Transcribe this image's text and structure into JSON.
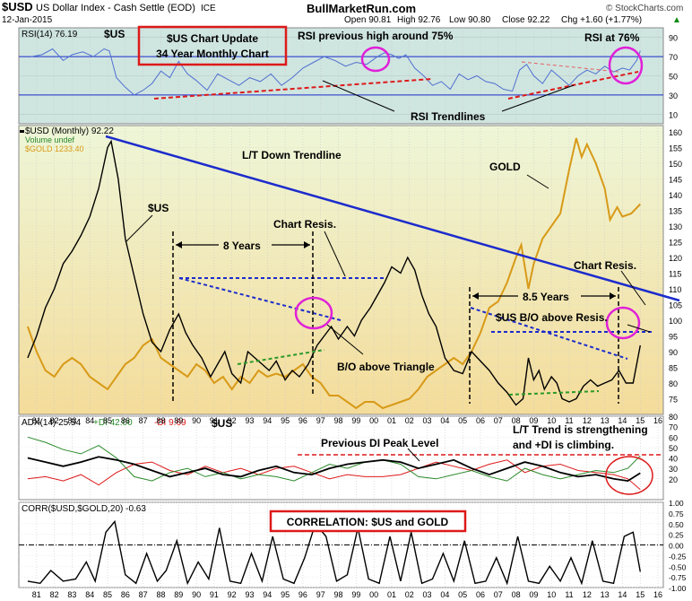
{
  "header": {
    "symbol": "$USD",
    "description": "US Dollar Index - Cash Settle (EOD)",
    "exchange": "ICE",
    "date": "12-Jan-2015",
    "site": "BullMarketRun.com",
    "watermark": "© StockCharts.com",
    "quote": {
      "open": "Open 90.81",
      "high": "High 92.76",
      "low": "Low 90.80",
      "close": "Close 92.22",
      "chg": "Chg +1.60 (+1.77%)",
      "arrow": "▲"
    }
  },
  "colors": {
    "rsi_bg": "#cfe5e0",
    "main_bg_top": "#eef6d8",
    "main_bg_bottom": "#f3dfa0",
    "usd": "#000000",
    "gold": "#d89a18",
    "rsi_line": "#5070d0",
    "trend_blue": "#1c2ccc",
    "trend_red": "#dd1a1a",
    "magenta": "#e020d8",
    "adx": "#000000",
    "plus_di": "#2a8a2a",
    "minus_di": "#dd1a1a",
    "annotation_box": "#dd1a1a"
  },
  "chart_data": [
    {
      "panel": "rsi",
      "type": "line",
      "legend": "RSI(14) 76.19",
      "ticker_label": "$US",
      "ylim": [
        0,
        100
      ],
      "y_ticks": [
        10,
        30,
        50,
        70,
        90
      ],
      "reference_lines": [
        70,
        30
      ],
      "x_years": [
        1980,
        2016.3
      ],
      "series": [
        {
          "name": "RSI(14)",
          "x": [
            1980.7,
            1981.3,
            1981.9,
            1982.5,
            1983.0,
            1983.6,
            1984.2,
            1984.8,
            1985.1,
            1985.5,
            1986.0,
            1986.5,
            1987.0,
            1987.5,
            1988.0,
            1988.5,
            1989.0,
            1989.5,
            1990.0,
            1990.6,
            1991.2,
            1991.8,
            1992.4,
            1993.0,
            1993.6,
            1994.2,
            1994.8,
            1995.4,
            1996.0,
            1996.6,
            1997.2,
            1997.8,
            1998.4,
            1999.0,
            1999.6,
            2000.2,
            2000.6,
            2001.0,
            2001.4,
            2001.8,
            2002.3,
            2002.8,
            2003.3,
            2003.8,
            2004.3,
            2004.8,
            2005.3,
            2005.8,
            2006.3,
            2006.8,
            2007.3,
            2007.8,
            2008.2,
            2008.6,
            2009.0,
            2009.5,
            2010.0,
            2010.5,
            2011.0,
            2011.5,
            2012.0,
            2012.5,
            2013.0,
            2013.5,
            2014.0,
            2014.4,
            2014.8,
            2015.0
          ],
          "values": [
            70,
            72,
            78,
            66,
            72,
            75,
            70,
            78,
            76,
            48,
            38,
            30,
            35,
            42,
            55,
            48,
            65,
            52,
            45,
            35,
            52,
            46,
            40,
            48,
            44,
            52,
            40,
            48,
            58,
            64,
            70,
            66,
            60,
            64,
            62,
            70,
            74,
            72,
            68,
            72,
            58,
            50,
            40,
            44,
            36,
            52,
            46,
            50,
            44,
            42,
            36,
            34,
            56,
            62,
            50,
            42,
            56,
            48,
            40,
            50,
            56,
            52,
            60,
            54,
            58,
            56,
            66,
            76
          ]
        }
      ]
    },
    {
      "panel": "price",
      "type": "line",
      "legend": [
        "$USD (Monthly) 92.22",
        "Volume undef",
        "$GOLD 1233.40"
      ],
      "ylim": [
        70,
        162
      ],
      "y_ticks": [
        75,
        80,
        85,
        90,
        95,
        100,
        105,
        110,
        115,
        120,
        125,
        130,
        135,
        140,
        145,
        150,
        155,
        160
      ],
      "x_ticks": [
        "81",
        "82",
        "83",
        "84",
        "85",
        "86",
        "87",
        "88",
        "89",
        "90",
        "91",
        "92",
        "93",
        "94",
        "95",
        "96",
        "97",
        "98",
        "99",
        "00",
        "01",
        "02",
        "03",
        "04",
        "05",
        "06",
        "07",
        "08",
        "09",
        "10",
        "11",
        "12",
        "13",
        "14",
        "15",
        "16"
      ],
      "series": [
        {
          "name": "$USD",
          "x": [
            1980.5,
            1981.0,
            1981.5,
            1982.0,
            1982.5,
            1983.0,
            1983.5,
            1984.0,
            1984.5,
            1985.0,
            1985.2,
            1985.6,
            1986.0,
            1986.5,
            1987.0,
            1987.5,
            1988.0,
            1988.5,
            1989.0,
            1989.4,
            1989.8,
            1990.3,
            1990.8,
            1991.2,
            1991.6,
            1992.0,
            1992.5,
            1992.9,
            1993.3,
            1993.7,
            1994.1,
            1994.5,
            1995.0,
            1995.4,
            1995.8,
            1996.3,
            1996.8,
            1997.2,
            1997.6,
            1998.0,
            1998.5,
            1998.9,
            1999.3,
            1999.8,
            2000.2,
            2000.6,
            2001.0,
            2001.5,
            2001.9,
            2002.3,
            2002.7,
            2003.1,
            2003.5,
            2004.0,
            2004.5,
            2005.0,
            2005.5,
            2006.0,
            2006.5,
            2007.0,
            2007.5,
            2008.0,
            2008.4,
            2008.7,
            2009.0,
            2009.3,
            2009.6,
            2010.0,
            2010.3,
            2010.6,
            2011.0,
            2011.4,
            2011.8,
            2012.2,
            2012.6,
            2013.0,
            2013.4,
            2013.8,
            2014.2,
            2014.6,
            2015.0
          ],
          "values": [
            88,
            95,
            104,
            110,
            118,
            122,
            127,
            133,
            142,
            155,
            157,
            145,
            126,
            114,
            102,
            93,
            90,
            97,
            102,
            96,
            92,
            88,
            82,
            86,
            90,
            83,
            80,
            90,
            88,
            86,
            84,
            87,
            81,
            84,
            82,
            86,
            92,
            95,
            98,
            94,
            98,
            95,
            100,
            104,
            108,
            112,
            117,
            115,
            120,
            116,
            108,
            102,
            98,
            88,
            84,
            83,
            90,
            87,
            84,
            80,
            77,
            73,
            75,
            88,
            81,
            84,
            78,
            82,
            80,
            75,
            74,
            75,
            79,
            81,
            79,
            80,
            81,
            84,
            80,
            80,
            92
          ]
        },
        {
          "name": "$GOLD",
          "x": [
            1980.5,
            1981.0,
            1981.5,
            1982.0,
            1982.5,
            1983.0,
            1983.5,
            1984.0,
            1984.5,
            1985.0,
            1985.5,
            1986.0,
            1986.5,
            1987.0,
            1987.5,
            1988.0,
            1988.5,
            1989.0,
            1989.5,
            1990.0,
            1990.5,
            1991.0,
            1991.5,
            1992.0,
            1992.5,
            1993.0,
            1993.5,
            1994.0,
            1994.5,
            1995.0,
            1995.5,
            1996.0,
            1996.5,
            1997.0,
            1997.5,
            1998.0,
            1998.5,
            1999.0,
            1999.5,
            2000.0,
            2000.5,
            2001.0,
            2001.5,
            2002.0,
            2002.5,
            2003.0,
            2003.5,
            2004.0,
            2004.5,
            2005.0,
            2005.5,
            2006.0,
            2006.5,
            2007.0,
            2007.5,
            2008.0,
            2008.3,
            2008.7,
            2009.0,
            2009.5,
            2010.0,
            2010.5,
            2011.0,
            2011.4,
            2011.7,
            2012.0,
            2012.5,
            2013.0,
            2013.3,
            2013.7,
            2014.0,
            2014.5,
            2015.0
          ],
          "values": [
            98,
            90,
            84,
            82,
            86,
            88,
            86,
            82,
            80,
            78,
            82,
            86,
            88,
            92,
            94,
            88,
            86,
            84,
            82,
            86,
            84,
            80,
            82,
            78,
            82,
            80,
            84,
            82,
            83,
            82,
            84,
            86,
            82,
            80,
            76,
            76,
            74,
            72,
            74,
            74,
            72,
            73,
            74,
            75,
            78,
            82,
            84,
            86,
            88,
            86,
            90,
            96,
            104,
            106,
            112,
            120,
            124,
            110,
            118,
            126,
            130,
            134,
            148,
            158,
            152,
            156,
            150,
            142,
            132,
            136,
            133,
            134,
            137
          ]
        }
      ]
    },
    {
      "panel": "adx",
      "type": "line",
      "legend": [
        "ADX(14) 25.54",
        "+DI 42.00",
        "-DI 9.69"
      ],
      "ticker_label": "$US",
      "ylim": [
        0,
        80
      ],
      "y_ticks": [
        20,
        30,
        40,
        50,
        60,
        70,
        80
      ],
      "reference_lines": [
        43
      ],
      "series": [
        {
          "name": "ADX(14)",
          "x": [
            1980.5,
            1981.5,
            1982.5,
            1983.5,
            1984.5,
            1985.5,
            1986.5,
            1987.5,
            1988.5,
            1989.5,
            1990.5,
            1991.5,
            1992.5,
            1993.5,
            1994.5,
            1995.5,
            1996.5,
            1997.5,
            1998.5,
            1999.5,
            2000.5,
            2001.5,
            2002.5,
            2003.5,
            2004.5,
            2005.5,
            2006.5,
            2007.5,
            2008.5,
            2009.5,
            2010.5,
            2011.5,
            2012.5,
            2013.5,
            2014.3,
            2015.0
          ],
          "values": [
            40,
            36,
            32,
            36,
            41,
            38,
            34,
            28,
            22,
            26,
            30,
            24,
            22,
            28,
            32,
            26,
            24,
            30,
            34,
            36,
            38,
            36,
            30,
            34,
            38,
            30,
            24,
            30,
            36,
            32,
            26,
            22,
            24,
            20,
            18,
            25.5
          ]
        },
        {
          "name": "+DI",
          "x": [
            1980.5,
            1981.5,
            1982.5,
            1983.5,
            1984.5,
            1985.5,
            1986.5,
            1987.5,
            1988.5,
            1989.5,
            1990.5,
            1991.5,
            1992.5,
            1993.5,
            1994.5,
            1995.5,
            1996.5,
            1997.5,
            1998.5,
            1999.5,
            2000.5,
            2001.5,
            2002.5,
            2003.5,
            2004.5,
            2005.5,
            2006.5,
            2007.5,
            2008.5,
            2009.5,
            2010.5,
            2011.5,
            2012.5,
            2013.5,
            2014.3,
            2015.0
          ],
          "values": [
            60,
            55,
            48,
            44,
            52,
            40,
            22,
            18,
            26,
            30,
            22,
            26,
            20,
            24,
            22,
            18,
            26,
            34,
            30,
            36,
            38,
            34,
            22,
            20,
            24,
            28,
            22,
            18,
            30,
            24,
            20,
            24,
            28,
            26,
            30,
            42
          ]
        },
        {
          "name": "-DI",
          "x": [
            1980.5,
            1981.5,
            1982.5,
            1983.5,
            1984.5,
            1985.5,
            1986.5,
            1987.5,
            1988.5,
            1989.5,
            1990.5,
            1991.5,
            1992.5,
            1993.5,
            1994.5,
            1995.5,
            1996.5,
            1997.5,
            1998.5,
            1999.5,
            2000.5,
            2001.5,
            2002.5,
            2003.5,
            2004.5,
            2005.5,
            2006.5,
            2007.5,
            2008.5,
            2009.5,
            2010.5,
            2011.5,
            2012.5,
            2013.5,
            2014.3,
            2015.0
          ],
          "values": [
            20,
            22,
            18,
            24,
            14,
            26,
            34,
            36,
            28,
            24,
            32,
            26,
            30,
            24,
            30,
            32,
            26,
            20,
            24,
            22,
            22,
            24,
            30,
            36,
            32,
            28,
            34,
            38,
            26,
            32,
            34,
            28,
            26,
            24,
            20,
            9.69
          ]
        }
      ]
    },
    {
      "panel": "correlation",
      "type": "line",
      "legend": "CORR($USD,$GOLD,20) -0.63",
      "ylim": [
        -1,
        1
      ],
      "y_ticks": [
        "1.00",
        "0.75",
        "0.50",
        "0.25",
        "0.00",
        "-0.25",
        "-0.50",
        "-0.75",
        "-1.00"
      ],
      "series": [
        {
          "name": "CORR(20)",
          "x": [
            1980.5,
            1981.2,
            1981.8,
            1982.5,
            1983.2,
            1983.8,
            1984.3,
            1984.9,
            1985.4,
            1986.0,
            1986.6,
            1987.2,
            1987.8,
            1988.3,
            1988.9,
            1989.5,
            1990.1,
            1990.7,
            1991.3,
            1991.9,
            1992.5,
            1993.1,
            1993.7,
            1994.3,
            1994.9,
            1995.5,
            1996.1,
            1996.7,
            1997.3,
            1997.9,
            1998.5,
            1999.1,
            1999.7,
            2000.3,
            2000.9,
            2001.5,
            2002.1,
            2002.7,
            2003.3,
            2003.9,
            2004.5,
            2005.1,
            2005.7,
            2006.3,
            2006.9,
            2007.5,
            2008.1,
            2008.7,
            2009.3,
            2009.9,
            2010.5,
            2011.1,
            2011.7,
            2012.3,
            2012.9,
            2013.5,
            2014.1,
            2014.6,
            2015.0
          ],
          "values": [
            -0.85,
            -0.9,
            -0.6,
            -0.85,
            -0.8,
            -0.4,
            -0.85,
            0.3,
            0.55,
            -0.7,
            -0.9,
            -0.2,
            -0.85,
            -0.6,
            0.1,
            -0.9,
            -0.4,
            -0.8,
            0.4,
            -0.85,
            -0.9,
            -0.2,
            -0.85,
            0.2,
            -0.8,
            -0.9,
            -0.3,
            0.5,
            0.2,
            -0.85,
            -0.7,
            0.4,
            -0.8,
            -0.9,
            0.2,
            -0.85,
            0.3,
            -0.9,
            -0.8,
            -0.2,
            -0.85,
            0.1,
            -0.9,
            -0.85,
            -0.3,
            -0.9,
            0.2,
            -0.85,
            -0.9,
            -0.5,
            -0.85,
            -0.3,
            -0.9,
            0.1,
            -0.85,
            -0.9,
            0.2,
            0.3,
            -0.63
          ]
        }
      ]
    }
  ],
  "annotations": {
    "update_box": [
      "$US Chart Update",
      "34 Year Monthly Chart"
    ],
    "rsi_prev_high": "RSI previous high around 75%",
    "rsi_at_76": "RSI at 76%",
    "rsi_trendlines": "RSI Trendlines",
    "us_label": "$US",
    "lt_down": "L/T Down Trendline",
    "gold": "GOLD",
    "chart_resis_1": "Chart Resis.",
    "chart_resis_2": "Chart Resis.",
    "eight_years": "8 Years",
    "eight_half_years": "8.5 Years",
    "bo_resis": "$US B/O above Resis.",
    "bo_triangle": "B/O above Triangle",
    "prev_di_peak": "Previous DI Peak Level",
    "lt_trend": [
      "L/T Trend is strengthening",
      "and +DI is climbing."
    ],
    "correlation_box": "CORRELATION: $US and GOLD"
  }
}
